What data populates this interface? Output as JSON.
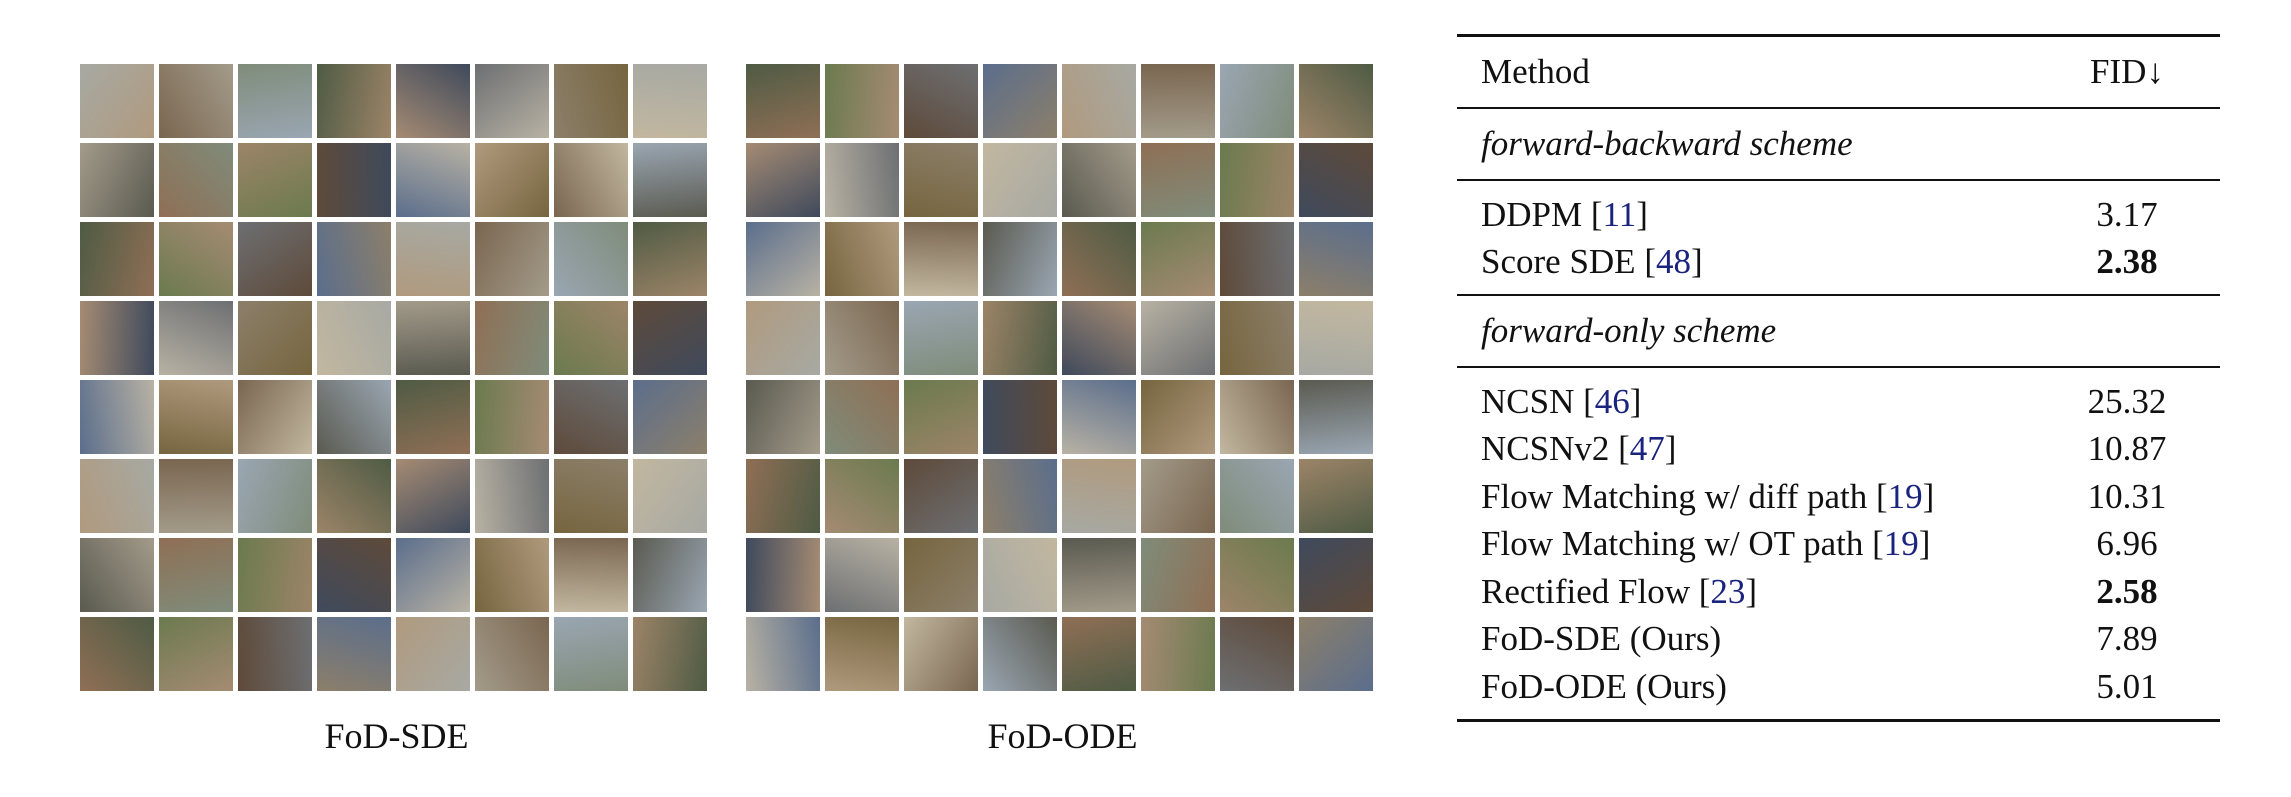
{
  "panels": [
    {
      "id": "sde",
      "caption": "FoD-SDE"
    },
    {
      "id": "ode",
      "caption": "FoD-ODE"
    }
  ],
  "table": {
    "header": {
      "method": "Method",
      "metric": "FID↓"
    },
    "sections": [
      {
        "title": "forward-backward scheme",
        "rows": [
          {
            "method": "DDPM",
            "cite": "11",
            "fid": "3.17",
            "bold": false
          },
          {
            "method": "Score SDE",
            "cite": "48",
            "fid": "2.38",
            "bold": true
          }
        ]
      },
      {
        "title": "forward-only scheme",
        "rows": [
          {
            "method": "NCSN",
            "cite": "46",
            "fid": "25.32",
            "bold": false
          },
          {
            "method": "NCSNv2",
            "cite": "47",
            "fid": "10.87",
            "bold": false
          },
          {
            "method": "Flow Matching w/ diff path",
            "cite": "19",
            "fid": "10.31",
            "bold": false
          },
          {
            "method": "Flow Matching w/ OT path",
            "cite": "19",
            "fid": "6.96",
            "bold": false
          },
          {
            "method": "Rectified Flow",
            "cite": "23",
            "fid": "2.58",
            "bold": true
          },
          {
            "method": "FoD-SDE (Ours)",
            "cite": "",
            "fid": "7.89",
            "bold": false
          },
          {
            "method": "FoD-ODE (Ours)",
            "cite": "",
            "fid": "5.01",
            "bold": false
          }
        ]
      }
    ]
  }
}
